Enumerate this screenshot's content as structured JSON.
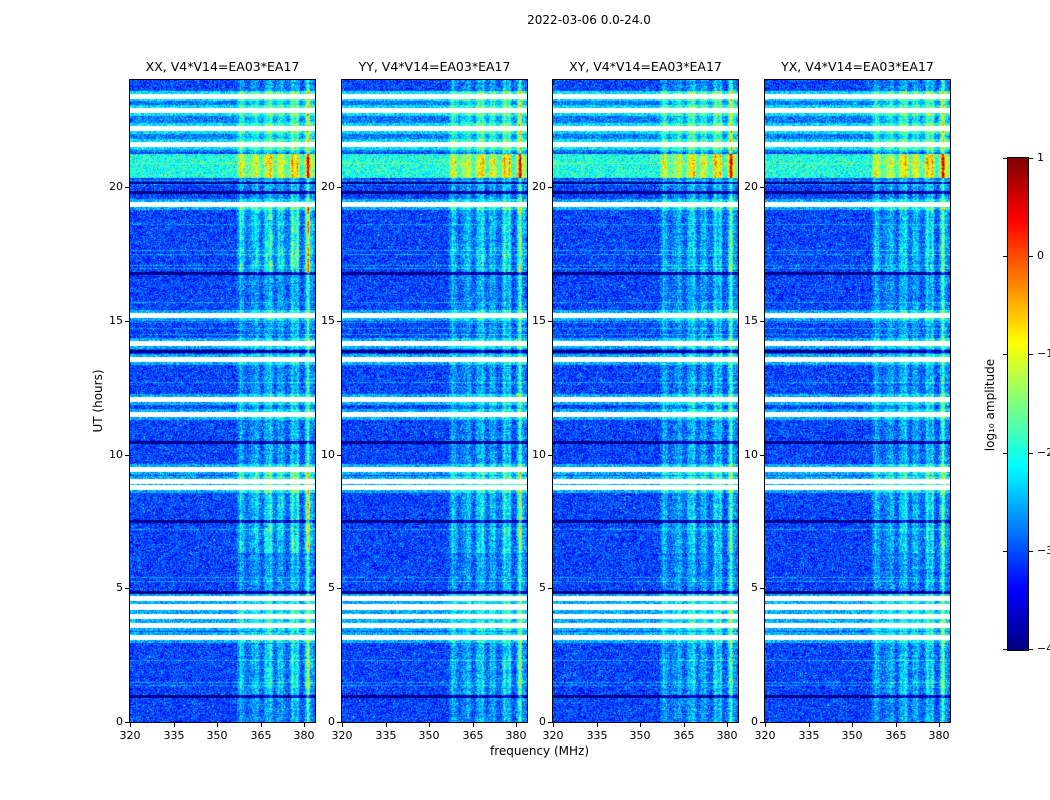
{
  "figure": {
    "title": "2022-03-06 0.0-24.0",
    "background": "#ffffff"
  },
  "chart_data": {
    "type": "heatmap",
    "title": "2022-03-06 0.0-24.0",
    "colormap": "jet",
    "panels": [
      {
        "title": "XX, V4*V14=EA03*EA17",
        "pol": "XX"
      },
      {
        "title": "YY, V4*V14=EA03*EA17",
        "pol": "YY"
      },
      {
        "title": "XY, V4*V14=EA03*EA17",
        "pol": "XY"
      },
      {
        "title": "YX, V4*V14=EA03*EA17",
        "pol": "YX"
      }
    ],
    "x": {
      "label": "frequency (MHz)",
      "range": [
        320,
        383.75
      ],
      "ticks": [
        320,
        335,
        350,
        365,
        380
      ]
    },
    "y": {
      "label": "UT (hours)",
      "range": [
        0,
        24
      ],
      "ticks": [
        0,
        5,
        10,
        15,
        20
      ]
    },
    "colorbar": {
      "label": "log₁₀ amplitude",
      "range": [
        -4,
        1
      ],
      "ticks": [
        {
          "v": 1,
          "label": "1"
        },
        {
          "v": 0,
          "label": "0"
        },
        {
          "v": -1,
          "label": "−1"
        },
        {
          "v": -2,
          "label": "−2"
        },
        {
          "v": -3,
          "label": "−3"
        },
        {
          "v": -4,
          "label": "−4"
        }
      ]
    },
    "features": {
      "background_level": -3.05,
      "rfi_band_mhz": [
        356.5,
        383.75
      ],
      "broadband_event_ut": [
        20.35,
        21.25
      ],
      "upper_bright_region_ut": [
        21.3,
        23.6
      ],
      "flagged_rows_ut": [
        23.4,
        22.85,
        22.2,
        21.6,
        19.35,
        15.2,
        14.15,
        13.55,
        12.05,
        11.5,
        9.45,
        9.0,
        8.75,
        4.6,
        4.3,
        3.95,
        3.6,
        3.15
      ],
      "dark_rows_ut": [
        20.15,
        19.8,
        16.75,
        13.85,
        10.45,
        7.5,
        4.85,
        0.95
      ],
      "enhanced_patches": [
        {
          "ut": [
            16.8,
            19.3
          ],
          "gains": [
            0.95,
            0.5,
            0.3,
            0.38
          ]
        },
        {
          "ut": [
            6.3,
            9.4
          ],
          "gains": [
            0.8,
            0.45,
            0.28,
            0.35
          ]
        },
        {
          "ut": [
            0.8,
            2.9
          ],
          "gains": [
            0.45,
            0.3,
            0.2,
            0.25
          ]
        }
      ]
    }
  }
}
